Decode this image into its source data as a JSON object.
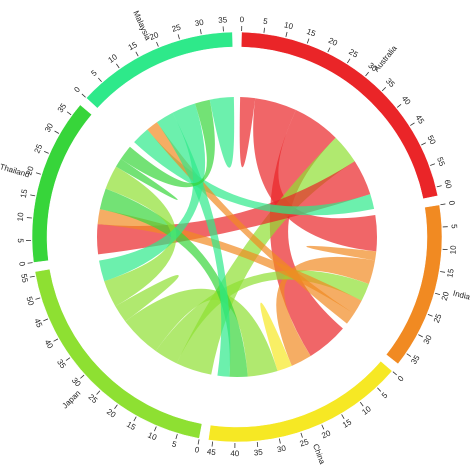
{
  "chart_data": {
    "type": "chord",
    "groups": [
      {
        "name": "Australia",
        "color": "#ea2528",
        "ticks": [
          0,
          5,
          10,
          15,
          20,
          25,
          30,
          35,
          40,
          45,
          50,
          55,
          60
        ]
      },
      {
        "name": "India",
        "color": "#f18a22",
        "ticks": [
          0,
          5,
          10,
          15,
          20,
          25,
          30,
          35
        ]
      },
      {
        "name": "China",
        "color": "#f6e824",
        "ticks": [
          0,
          5,
          10,
          15,
          20,
          25,
          30,
          35,
          40,
          45
        ]
      },
      {
        "name": "Japan",
        "color": "#8ee032",
        "ticks": [
          0,
          5,
          10,
          15,
          20,
          25,
          30,
          35,
          40,
          45,
          50,
          55
        ]
      },
      {
        "name": "Thailand",
        "color": "#37d53a",
        "ticks": [
          0,
          5,
          10,
          15,
          20,
          25,
          30,
          35
        ]
      },
      {
        "name": "Malaysia",
        "color": "#2ee98a",
        "ticks": [
          0,
          5,
          10,
          15,
          20,
          25,
          30,
          35
        ]
      }
    ],
    "matrix": [
      [
        5,
        14,
        16,
        10,
        12,
        5
      ],
      [
        12,
        3,
        8,
        6,
        5,
        4
      ],
      [
        14,
        7,
        5,
        10,
        6,
        4
      ],
      [
        12,
        8,
        14,
        6,
        9,
        7
      ],
      [
        10,
        5,
        7,
        8,
        3,
        5
      ],
      [
        6,
        4,
        6,
        8,
        5,
        8
      ]
    ]
  }
}
